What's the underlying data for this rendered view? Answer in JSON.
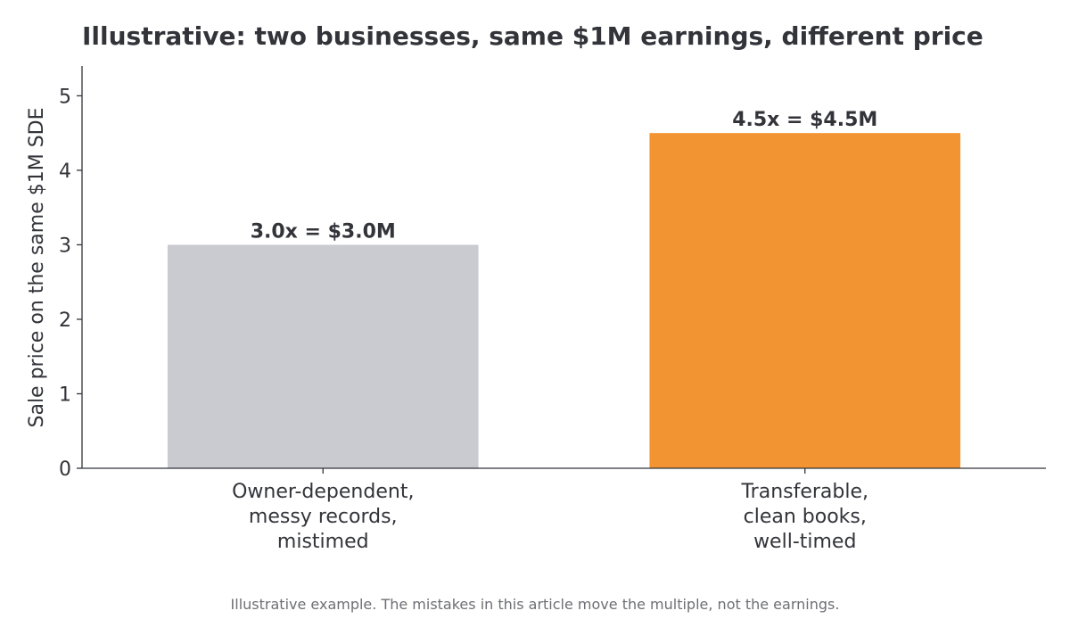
{
  "chart_data": {
    "type": "bar",
    "title": "Illustrative: two businesses, same $1M earnings, different price",
    "ylabel": "Sale price on the same $1M SDE",
    "xlabel": "",
    "categories": [
      [
        "Owner-dependent,",
        "messy records,",
        "mistimed"
      ],
      [
        "Transferable,",
        "clean books,",
        "well-timed"
      ]
    ],
    "values": [
      3.0,
      4.5
    ],
    "bar_labels": [
      "3.0x = $3.0M",
      "4.5x = $4.5M"
    ],
    "colors": [
      "#c9cbd0",
      "#f39433"
    ],
    "ylim": [
      0,
      5.4
    ],
    "yticks": [
      0,
      1,
      2,
      3,
      4,
      5
    ],
    "grid": false,
    "legend": "none"
  },
  "footnote": "Illustrative example. The mistakes in this article move the multiple, not the earnings."
}
